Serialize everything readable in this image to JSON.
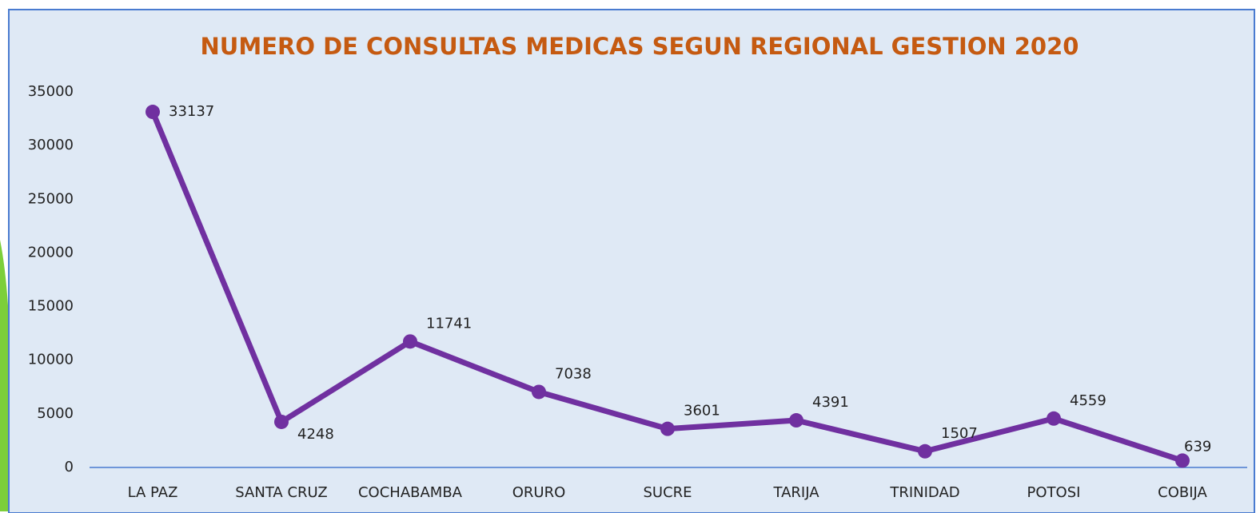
{
  "chart_data": {
    "type": "line",
    "title": "NUMERO DE CONSULTAS MEDICAS SEGUN REGIONAL GESTION 2020",
    "categories": [
      "LA PAZ",
      "SANTA CRUZ",
      "COCHABAMBA",
      "ORURO",
      "SUCRE",
      "TARIJA",
      "TRINIDAD",
      "POTOSI",
      "COBIJA"
    ],
    "series": [
      {
        "color": "#7030a0",
        "values": [
          33137,
          4248,
          11741,
          7038,
          3601,
          4391,
          1507,
          4559,
          639
        ]
      }
    ],
    "ylim": [
      0,
      35000
    ],
    "yticks": [
      0,
      5000,
      10000,
      15000,
      20000,
      25000,
      30000,
      35000
    ],
    "grid": false
  }
}
